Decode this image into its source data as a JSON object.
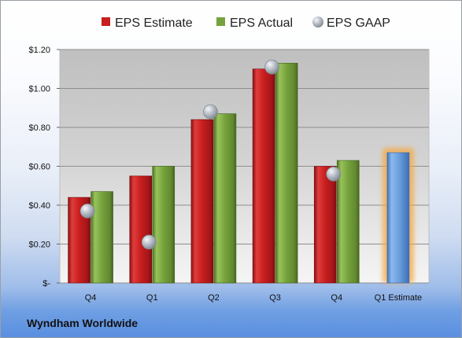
{
  "chart_data": {
    "type": "bar",
    "categories": [
      "Q4",
      "Q1",
      "Q2",
      "Q3",
      "Q4",
      "Q1 Estimate"
    ],
    "series": [
      {
        "name": "EPS Estimate",
        "values": [
          0.44,
          0.55,
          0.84,
          1.1,
          0.6,
          null
        ]
      },
      {
        "name": "EPS Actual",
        "values": [
          0.47,
          0.6,
          0.87,
          1.13,
          0.63,
          0.67
        ]
      },
      {
        "name": "EPS GAAP",
        "values": [
          0.37,
          0.21,
          0.88,
          1.11,
          0.56,
          null
        ]
      }
    ],
    "y_ticks": [
      "$-",
      "$0.20",
      "$0.40",
      "$0.60",
      "$0.80",
      "$1.00",
      "$1.20"
    ],
    "ylim": [
      0,
      1.2
    ],
    "company": "Wyndham Worldwide",
    "legend_position": "top",
    "grid": true,
    "colors": {
      "estimate": "#c81e1e",
      "actual": "#76a23d",
      "gaap": "#9ca3ad",
      "future_estimate": "#6a9edc",
      "future_glow": "#f4a940"
    }
  }
}
